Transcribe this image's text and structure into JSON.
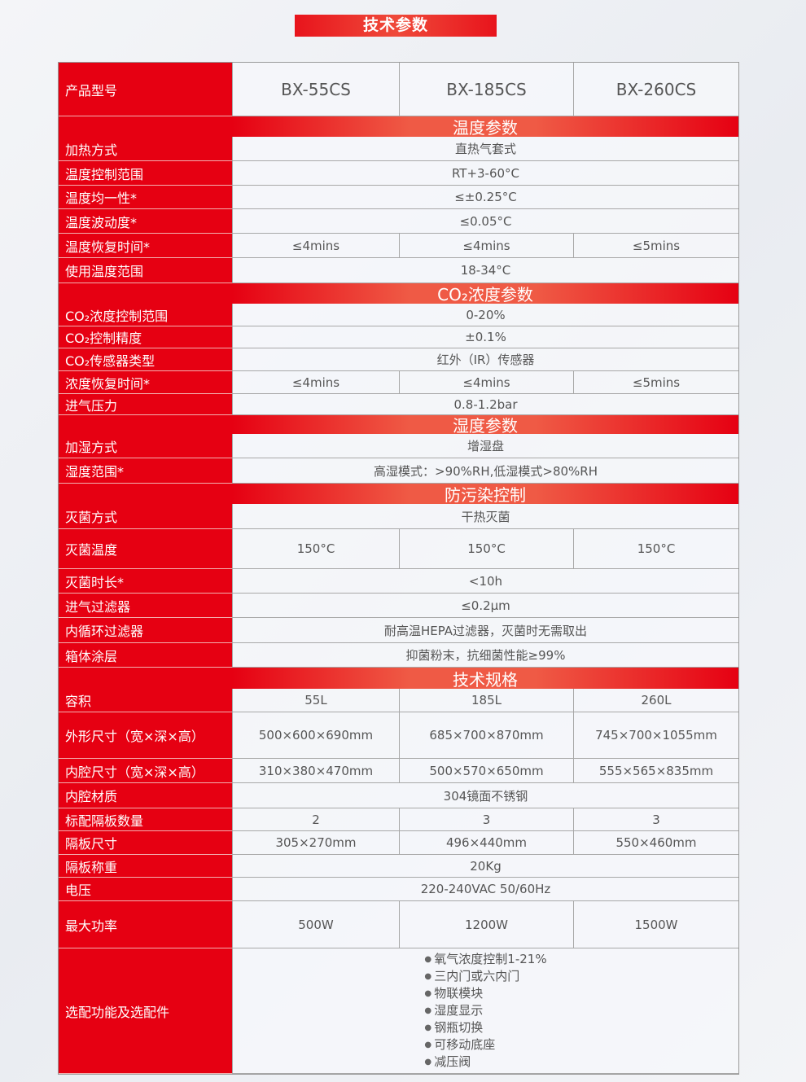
{
  "title": "技术参数",
  "colors": {
    "accent": "#e60012"
  },
  "header": {
    "label": "产品型号",
    "models": [
      "BX-55CS",
      "BX-185CS",
      "BX-260CS"
    ]
  },
  "rows": [
    {
      "section": "温度参数"
    },
    {
      "label": "加热方式",
      "values": [
        "直热气套式"
      ]
    },
    {
      "label": "温度控制范围",
      "values": [
        "RT+3-60°C"
      ]
    },
    {
      "label": "温度均一性*",
      "values": [
        "≤±0.25°C"
      ]
    },
    {
      "label": "温度波动度*",
      "values": [
        "≤0.05°C"
      ]
    },
    {
      "label": "温度恢复时间*",
      "values": [
        "≤4mins",
        "≤4mins",
        "≤5mins"
      ]
    },
    {
      "label": "使用温度范围",
      "values": [
        "18-34°C"
      ]
    },
    {
      "section": "CO₂浓度参数"
    },
    {
      "label": "CO₂浓度控制范围",
      "values": [
        "0-20%"
      ]
    },
    {
      "label": "CO₂控制精度",
      "values": [
        "±0.1%"
      ]
    },
    {
      "label": "CO₂传感器类型",
      "values": [
        "红外（IR）传感器"
      ]
    },
    {
      "label": "浓度恢复时间*",
      "values": [
        "≤4mins",
        "≤4mins",
        "≤5mins"
      ]
    },
    {
      "label": "进气压力",
      "values": [
        "0.8-1.2bar"
      ]
    },
    {
      "section": "湿度参数"
    },
    {
      "label": "加湿方式",
      "values": [
        "增湿盘"
      ]
    },
    {
      "label": "湿度范围*",
      "values": [
        "高湿模式：>90%RH,低湿模式>80%RH"
      ]
    },
    {
      "section": "防污染控制"
    },
    {
      "label": "灭菌方式",
      "values": [
        "干热灭菌"
      ]
    },
    {
      "label": "灭菌温度",
      "values": [
        "150°C",
        "150°C",
        "150°C"
      ]
    },
    {
      "label": "灭菌时长*",
      "values": [
        "<10h"
      ]
    },
    {
      "label": "进气过滤器",
      "values": [
        "≤0.2μm"
      ]
    },
    {
      "label": "内循环过滤器",
      "values": [
        "耐高温HEPA过滤器，灭菌时无需取出"
      ]
    },
    {
      "label": "箱体涂层",
      "values": [
        "抑菌粉末，抗细菌性能≥99%"
      ]
    },
    {
      "section": "技术规格"
    },
    {
      "label": "容积",
      "values": [
        "55L",
        "185L",
        "260L"
      ]
    },
    {
      "label": "外形尺寸（宽×深×高）",
      "values": [
        "500×600×690mm",
        "685×700×870mm",
        "745×700×1055mm"
      ]
    },
    {
      "label": "内腔尺寸（宽×深×高）",
      "values": [
        "310×380×470mm",
        "500×570×650mm",
        "555×565×835mm"
      ]
    },
    {
      "label": "内腔材质",
      "values": [
        "304镜面不锈钢"
      ]
    },
    {
      "label": "标配隔板数量",
      "values": [
        "2",
        "3",
        "3"
      ]
    },
    {
      "label": "隔板尺寸",
      "values": [
        "305×270mm",
        "496×440mm",
        "550×460mm"
      ]
    },
    {
      "label": "隔板称重",
      "values": [
        "20Kg"
      ]
    },
    {
      "label": "电压",
      "values": [
        "220-240VAC 50/60Hz"
      ]
    },
    {
      "label": "最大功率",
      "values": [
        "500W",
        "1200W",
        "1500W"
      ]
    },
    {
      "label": "选配功能及选配件",
      "list": [
        "氧气浓度控制1-21%",
        "三内门或六内门",
        "物联模块",
        "湿度显示",
        "钢瓶切换",
        "可移动底座",
        "减压阀"
      ]
    }
  ]
}
